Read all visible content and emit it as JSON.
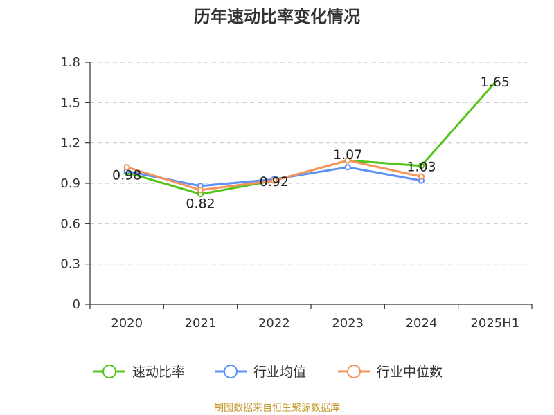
{
  "chart_data": {
    "type": "line",
    "title": "历年速动比率变化情况",
    "categories": [
      "2020",
      "2021",
      "2022",
      "2023",
      "2024",
      "2025H1"
    ],
    "ylim": [
      0,
      1.8
    ],
    "yticks": [
      "0",
      "0.3",
      "0.6",
      "0.9",
      "1.2",
      "1.5",
      "1.8"
    ],
    "grid": true,
    "legend_position": "bottom",
    "series": [
      {
        "name": "速动比率",
        "color": "#52c41a",
        "values": [
          0.98,
          0.82,
          0.92,
          1.07,
          1.03,
          1.65
        ],
        "labels": [
          "0.98",
          "0.82",
          "0.92",
          "1.07",
          "1.03",
          "1.65"
        ]
      },
      {
        "name": "行业均值",
        "color": "#5b8ff9",
        "values": [
          0.99,
          0.88,
          0.93,
          1.02,
          0.92,
          null
        ]
      },
      {
        "name": "行业中位数",
        "color": "#f6935c",
        "values": [
          1.02,
          0.85,
          0.92,
          1.07,
          0.95,
          null
        ]
      }
    ],
    "source": "制图数据来自恒生聚源数据库"
  }
}
